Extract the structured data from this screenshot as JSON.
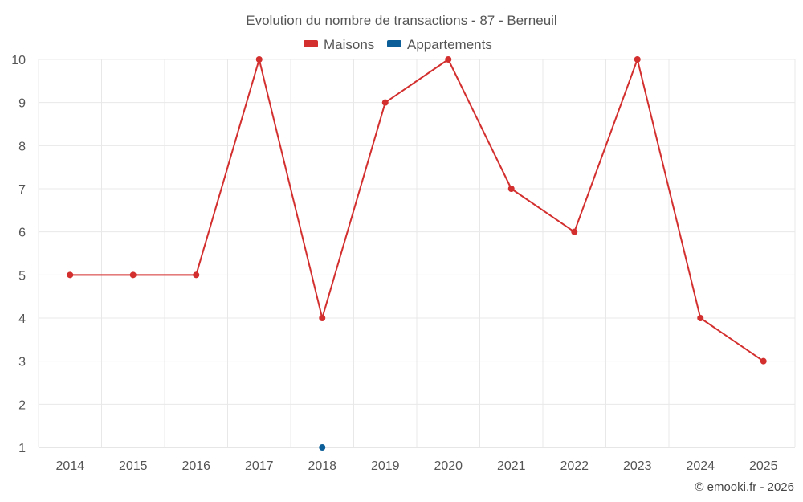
{
  "chart_data": {
    "type": "line",
    "title": "Evolution du nombre de transactions - 87 - Berneuil",
    "categories": [
      "2014",
      "2015",
      "2016",
      "2017",
      "2018",
      "2019",
      "2020",
      "2021",
      "2022",
      "2023",
      "2024",
      "2025"
    ],
    "ylim": [
      1,
      10
    ],
    "yticks": [
      "1",
      "2",
      "3",
      "4",
      "5",
      "6",
      "7",
      "8",
      "9",
      "10"
    ],
    "grid": true,
    "legend_position": "top",
    "series": [
      {
        "name": "Maisons",
        "color": "#d32f2f",
        "values": [
          5,
          5,
          5,
          10,
          4,
          9,
          10,
          7,
          6,
          10,
          4,
          3
        ]
      },
      {
        "name": "Appartements",
        "color": "#0b5e98",
        "values": [
          null,
          null,
          null,
          null,
          1,
          null,
          null,
          null,
          null,
          null,
          null,
          null
        ]
      }
    ]
  },
  "credit": "© emooki.fr - 2026"
}
